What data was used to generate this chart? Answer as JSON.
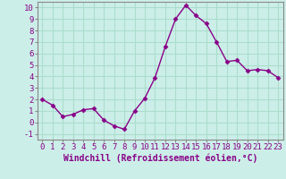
{
  "x": [
    0,
    1,
    2,
    3,
    4,
    5,
    6,
    7,
    8,
    9,
    10,
    11,
    12,
    13,
    14,
    15,
    16,
    17,
    18,
    19,
    20,
    21,
    22,
    23
  ],
  "y": [
    2.0,
    1.5,
    0.5,
    0.7,
    1.1,
    1.2,
    0.2,
    -0.3,
    -0.6,
    1.0,
    2.1,
    3.9,
    6.6,
    9.0,
    10.2,
    9.3,
    8.6,
    7.0,
    5.3,
    5.4,
    4.5,
    4.6,
    4.5,
    3.9
  ],
  "line_color": "#880088",
  "marker": "D",
  "marker_size": 2.5,
  "line_width": 1.0,
  "xlabel": "Windchill (Refroidissement éolien,°C)",
  "xlabel_fontsize": 7,
  "background_color": "#cceee8",
  "grid_color": "#aaddcc",
  "xlim": [
    -0.5,
    23.5
  ],
  "ylim": [
    -1.5,
    10.5
  ],
  "yticks": [
    -1,
    0,
    1,
    2,
    3,
    4,
    5,
    6,
    7,
    8,
    9,
    10
  ],
  "xticks": [
    0,
    1,
    2,
    3,
    4,
    5,
    6,
    7,
    8,
    9,
    10,
    11,
    12,
    13,
    14,
    15,
    16,
    17,
    18,
    19,
    20,
    21,
    22,
    23
  ],
  "tick_fontsize": 6.5
}
